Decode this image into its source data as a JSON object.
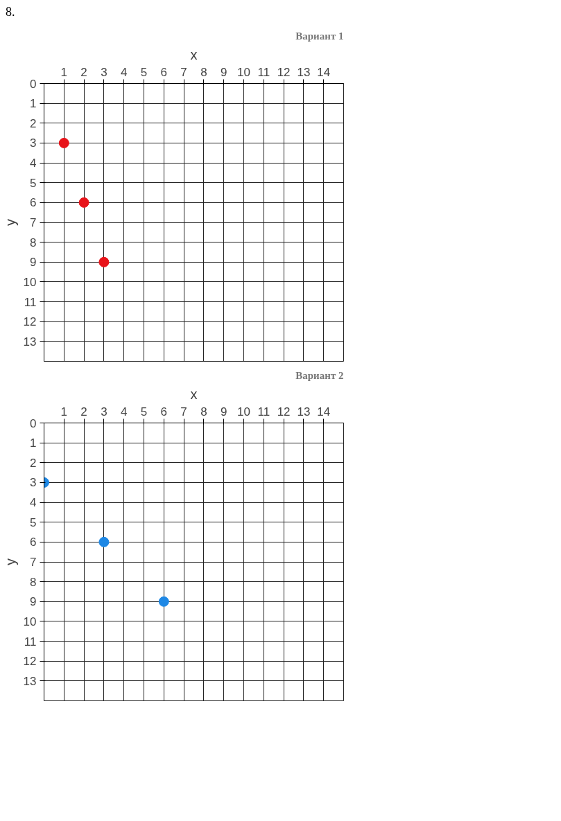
{
  "chart_data": [
    {
      "type": "scatter",
      "title": "Вариант 1",
      "xlabel": "x",
      "ylabel": "y",
      "annotations": [
        "8."
      ],
      "x": [
        1,
        2,
        3
      ],
      "values": [
        3,
        6,
        9
      ],
      "color": "#e8141a",
      "marker": "circle",
      "grid": true,
      "xlim": [
        0,
        15
      ],
      "ylim": [
        14,
        0
      ],
      "xticks": [
        1,
        2,
        3,
        4,
        5,
        6,
        7,
        8,
        9,
        10,
        11,
        12,
        13,
        14
      ],
      "yticks": [
        0,
        1,
        2,
        3,
        4,
        5,
        6,
        7,
        8,
        9,
        10,
        11,
        12,
        13
      ]
    },
    {
      "type": "scatter",
      "title": "Вариант 2",
      "xlabel": "x",
      "ylabel": "y",
      "x": [
        0,
        3,
        6
      ],
      "values": [
        3,
        6,
        9
      ],
      "color": "#1e88e5",
      "marker": "circle",
      "grid": true,
      "xlim": [
        0,
        15
      ],
      "ylim": [
        14,
        0
      ],
      "xticks": [
        1,
        2,
        3,
        4,
        5,
        6,
        7,
        8,
        9,
        10,
        11,
        12,
        13,
        14
      ],
      "yticks": [
        0,
        1,
        2,
        3,
        4,
        5,
        6,
        7,
        8,
        9,
        10,
        11,
        12,
        13
      ]
    }
  ]
}
